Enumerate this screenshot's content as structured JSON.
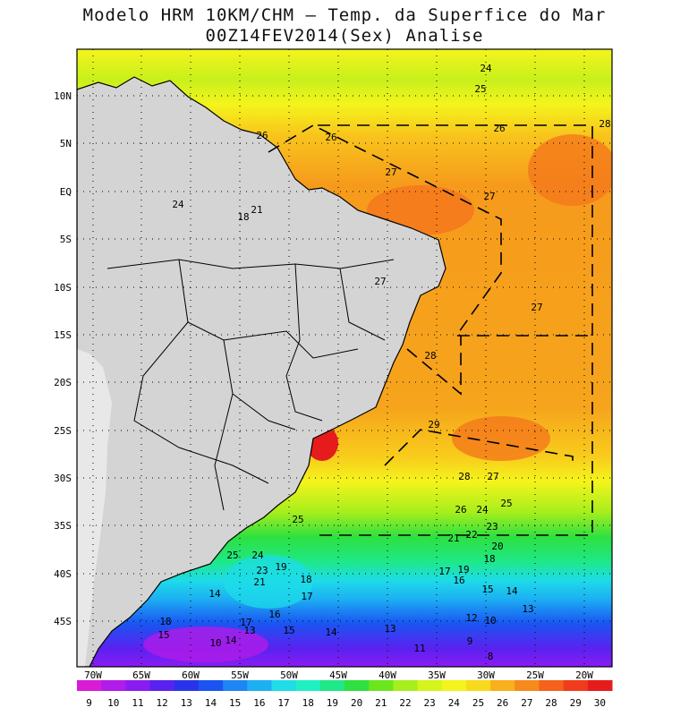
{
  "title": "Modelo HRM 10KM/CHM – Temp. da Superfice do Mar",
  "subtitle": "00Z14FEV2014(Sex) Analise",
  "lat_labels": [
    "10N",
    "5N",
    "EQ",
    "5S",
    "10S",
    "15S",
    "20S",
    "25S",
    "30S",
    "35S",
    "40S",
    "45S"
  ],
  "lon_labels": [
    "70W",
    "65W",
    "60W",
    "55W",
    "50W",
    "45W",
    "40W",
    "35W",
    "30W",
    "25W",
    "20W"
  ],
  "colorbar": {
    "values": [
      "9",
      "10",
      "11",
      "12",
      "13",
      "14",
      "15",
      "16",
      "17",
      "18",
      "19",
      "20",
      "21",
      "22",
      "23",
      "24",
      "25",
      "26",
      "27",
      "28",
      "29",
      "30"
    ],
    "colors": [
      "#d81cd6",
      "#b01ce8",
      "#8a1cf2",
      "#5a22f0",
      "#2834ec",
      "#1a55f2",
      "#1e85f4",
      "#1cb0f2",
      "#1edce8",
      "#1ef0c4",
      "#1ee888",
      "#2ee040",
      "#6ae61c",
      "#a6ee1c",
      "#d4f41c",
      "#f4f41c",
      "#f8da1c",
      "#f8b01c",
      "#f68a1c",
      "#f4621c",
      "#f03c1c",
      "#e61c1c"
    ]
  },
  "contour_labels": [
    "24",
    "25",
    "26",
    "26",
    "26",
    "28",
    "27",
    "27",
    "27",
    "27",
    "28",
    "29",
    "28",
    "27",
    "26",
    "24",
    "25",
    "23",
    "22",
    "21",
    "20",
    "18",
    "19",
    "17",
    "16",
    "15",
    "14",
    "13",
    "12",
    "10",
    "9",
    "8",
    "11",
    "14",
    "13",
    "15",
    "16",
    "17",
    "18",
    "15",
    "14",
    "10",
    "13",
    "14",
    "17",
    "18",
    "19",
    "21",
    "23",
    "24",
    "25",
    "25",
    "24",
    "21",
    "18"
  ],
  "colors": {
    "land": "#d4d4d4",
    "andes": "#ececec",
    "map_border": "#000000",
    "grid": "#000000"
  }
}
